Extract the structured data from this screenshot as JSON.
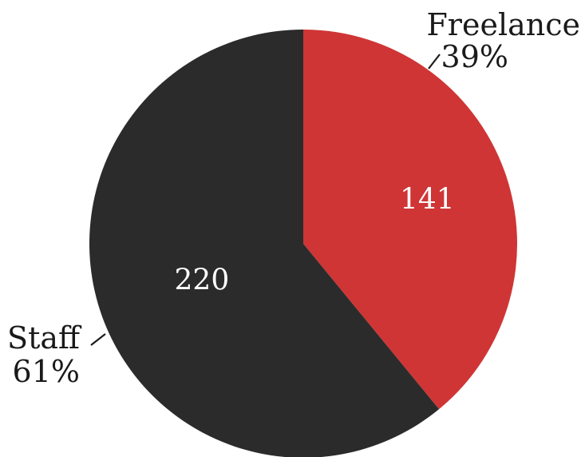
{
  "chart_data": {
    "type": "pie",
    "title": "",
    "slices": [
      {
        "name": "Freelance",
        "value": 141,
        "percent_label": "39%",
        "color": "#cf3535"
      },
      {
        "name": "Staff",
        "value": 220,
        "percent_label": "61%",
        "color": "#2b2b2b"
      }
    ],
    "start": "top",
    "direction": "clockwise"
  }
}
